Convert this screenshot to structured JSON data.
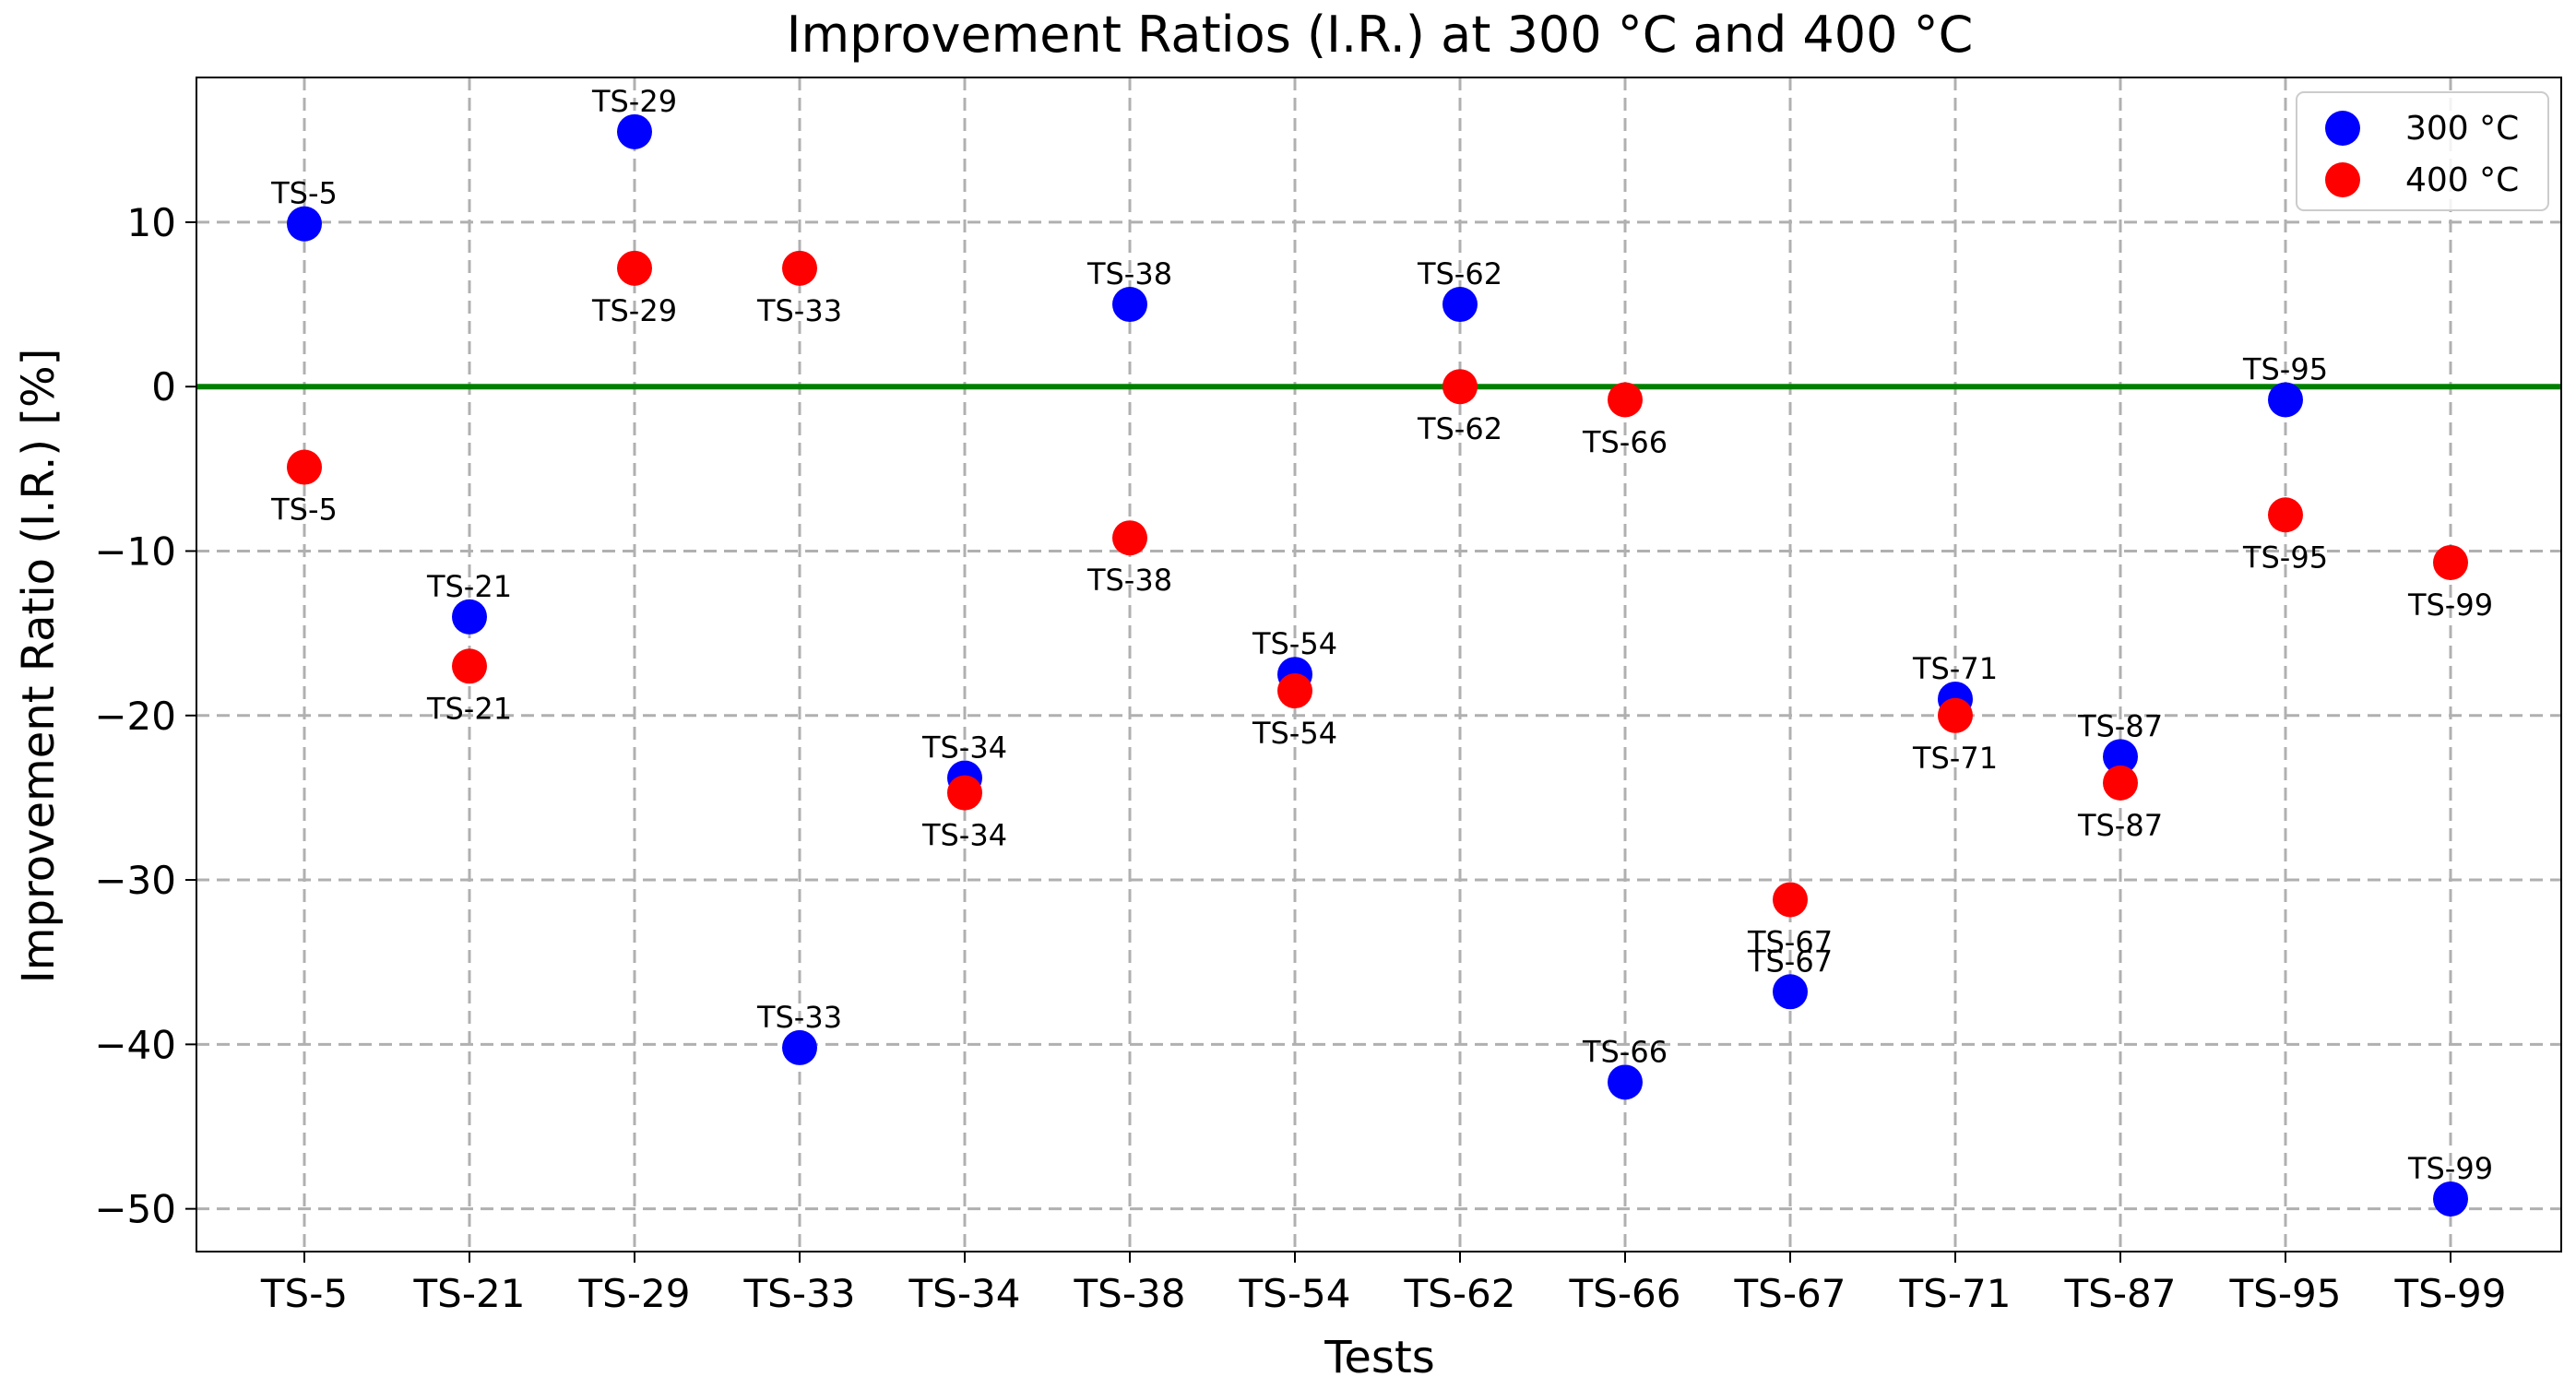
{
  "chart_data": {
    "type": "scatter",
    "title": "Improvement Ratios (I.R.) at 300 °C and 400 °C",
    "xlabel": "Tests",
    "ylabel": "Improvement Ratio (I.R.) [%]",
    "categories": [
      "TS-5",
      "TS-21",
      "TS-29",
      "TS-33",
      "TS-34",
      "TS-38",
      "TS-54",
      "TS-62",
      "TS-66",
      "TS-67",
      "TS-71",
      "TS-87",
      "TS-95",
      "TS-99"
    ],
    "ylim": [
      -52.6,
      18.8
    ],
    "yticks": [
      10,
      0,
      -10,
      -20,
      -30,
      -40,
      -50
    ],
    "ytick_labels": [
      "10",
      "0",
      "−10",
      "−20",
      "−30",
      "−40",
      "−50"
    ],
    "grid": true,
    "reference_line": {
      "y": 0,
      "color": "#008000"
    },
    "legend_position": "top-right",
    "series": [
      {
        "name": "300 °C",
        "color": "#0000ff",
        "values": [
          9.9,
          -14.0,
          15.5,
          -40.2,
          -23.8,
          5.0,
          -17.5,
          5.0,
          -42.3,
          -36.8,
          -19.0,
          -22.5,
          -0.8,
          -49.4
        ],
        "labels": [
          "TS-5",
          "TS-21",
          "TS-29",
          "TS-33",
          "TS-34",
          "TS-38",
          "TS-54",
          "TS-62",
          "TS-66",
          "TS-67",
          "TS-71",
          "TS-87",
          "TS-95",
          "TS-99"
        ],
        "label_side": [
          "above",
          "above",
          "above",
          "above",
          "above",
          "above",
          "above",
          "above",
          "above",
          "above",
          "above",
          "above",
          "above",
          "above"
        ]
      },
      {
        "name": "400 °C",
        "color": "#ff0000",
        "values": [
          -4.9,
          -17.0,
          7.2,
          7.2,
          -24.7,
          -9.2,
          -18.5,
          0.0,
          -0.8,
          -31.2,
          -20.0,
          -24.1,
          -7.8,
          -10.7
        ],
        "labels": [
          "TS-5",
          "TS-21",
          "TS-29",
          "TS-33",
          "TS-34",
          "TS-38",
          "TS-54",
          "TS-62",
          "TS-66",
          "TS-67",
          "TS-71",
          "TS-87",
          "TS-95",
          "TS-99"
        ],
        "label_side": [
          "below",
          "below",
          "below",
          "below",
          "below",
          "below",
          "below",
          "below",
          "below",
          "below",
          "below",
          "below",
          "below",
          "below"
        ]
      }
    ]
  }
}
